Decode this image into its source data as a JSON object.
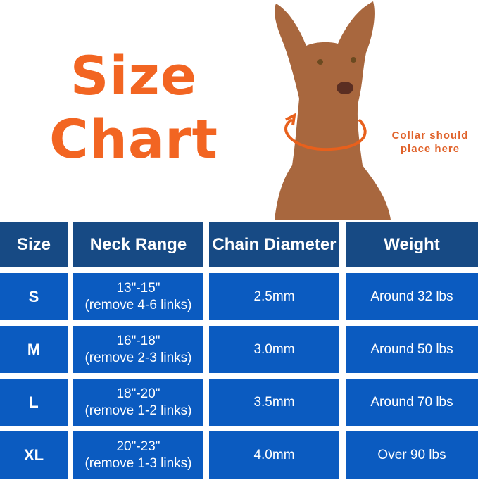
{
  "title": {
    "line1": "Size",
    "line2": "Chart"
  },
  "annotation": "Collar should place here",
  "colors": {
    "title": "#f26522",
    "header_bg": "#174a84",
    "row_bg": "#0b5bc0"
  },
  "table": {
    "headers": [
      "Size",
      "Neck Range",
      "Chain Diameter",
      "Weight"
    ],
    "rows": [
      {
        "size": "S",
        "range": "13\"-15\"",
        "links": "(remove 4-6 links)",
        "diameter": "2.5mm",
        "weight": "Around 32 lbs"
      },
      {
        "size": "M",
        "range": "16\"-18\"",
        "links": "(remove 2-3 links)",
        "diameter": "3.0mm",
        "weight": "Around 50 lbs"
      },
      {
        "size": "L",
        "range": "18\"-20\"",
        "links": "(remove 1-2 links)",
        "diameter": "3.5mm",
        "weight": "Around 70 lbs"
      },
      {
        "size": "XL",
        "range": "20\"-23\"",
        "links": "(remove 1-3 links)",
        "diameter": "4.0mm",
        "weight": "Over 90 lbs"
      }
    ]
  }
}
